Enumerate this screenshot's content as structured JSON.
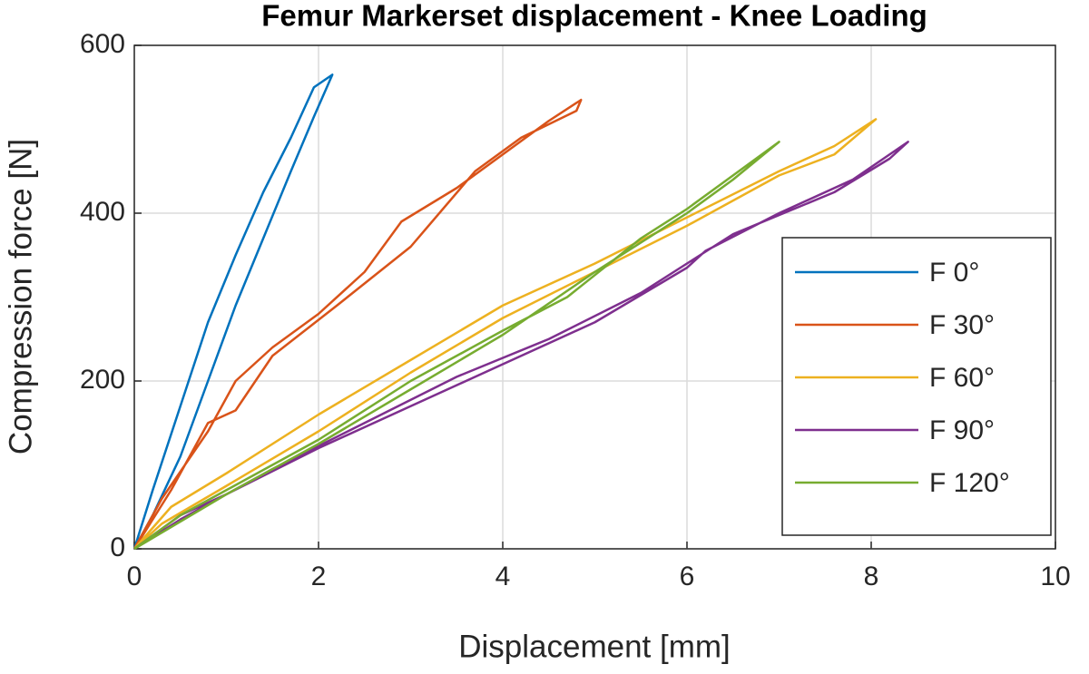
{
  "chart_data": {
    "type": "line",
    "title": "Femur Markerset displacement - Knee Loading",
    "x_label": "Displacement [mm]",
    "y_label": "Compression force [N]",
    "xlim": [
      0,
      10
    ],
    "xticks": [
      0,
      2,
      4,
      6,
      8,
      10
    ],
    "ylim": [
      0,
      600
    ],
    "yticks": [
      0,
      200,
      400,
      600
    ],
    "grid": true,
    "legend": "right",
    "series": [
      {
        "name": "F 0°",
        "color": "#0072bd",
        "x": [
          0,
          0.2,
          0.5,
          0.8,
          1.1,
          1.4,
          1.7,
          1.95,
          2.15,
          1.95,
          1.7,
          1.4,
          1.1,
          0.8,
          0.5,
          0.2,
          0
        ],
        "values": [
          0,
          70,
          170,
          270,
          350,
          425,
          490,
          550,
          565,
          515,
          450,
          370,
          290,
          200,
          110,
          40,
          0
        ]
      },
      {
        "name": "F 30°",
        "color": "#d95319",
        "x": [
          0,
          0.3,
          0.8,
          1.1,
          1.5,
          2.0,
          2.5,
          2.9,
          3.5,
          4.0,
          4.5,
          4.85,
          4.8,
          4.2,
          3.7,
          3.0,
          2.2,
          1.5,
          1.1,
          0.8,
          0.4,
          0
        ],
        "values": [
          0,
          60,
          140,
          200,
          240,
          280,
          330,
          390,
          430,
          470,
          510,
          535,
          522,
          490,
          450,
          360,
          290,
          230,
          165,
          150,
          70,
          0
        ]
      },
      {
        "name": "F 60°",
        "color": "#edb120",
        "x": [
          0,
          0.4,
          1,
          2,
          3,
          4,
          5,
          6,
          7,
          7.6,
          8.05,
          7.6,
          7,
          6,
          5,
          4,
          3,
          2,
          1,
          0.3,
          0
        ],
        "values": [
          0,
          50,
          90,
          160,
          225,
          290,
          340,
          395,
          450,
          480,
          512,
          470,
          445,
          385,
          330,
          275,
          210,
          140,
          75,
          30,
          0
        ]
      },
      {
        "name": "F 90°",
        "color": "#7e2f8e",
        "x": [
          0,
          0.5,
          1,
          2,
          3,
          4,
          5,
          6,
          6.2,
          7,
          7.8,
          8.4,
          8.2,
          7.6,
          6.5,
          5.5,
          4.5,
          3.5,
          2.5,
          1.5,
          0.5,
          0
        ],
        "values": [
          0,
          40,
          65,
          120,
          170,
          220,
          270,
          335,
          355,
          400,
          440,
          485,
          465,
          425,
          375,
          305,
          250,
          205,
          150,
          95,
          35,
          0
        ]
      },
      {
        "name": "F 120°",
        "color": "#77ac30",
        "x": [
          0,
          0.5,
          1,
          2,
          3,
          4,
          4.7,
          5.5,
          6,
          6.5,
          7,
          6.5,
          6,
          5,
          4,
          3,
          2,
          1,
          0
        ],
        "values": [
          0,
          40,
          70,
          130,
          200,
          260,
          300,
          370,
          405,
          445,
          485,
          440,
          400,
          330,
          255,
          190,
          125,
          65,
          0
        ]
      }
    ]
  }
}
